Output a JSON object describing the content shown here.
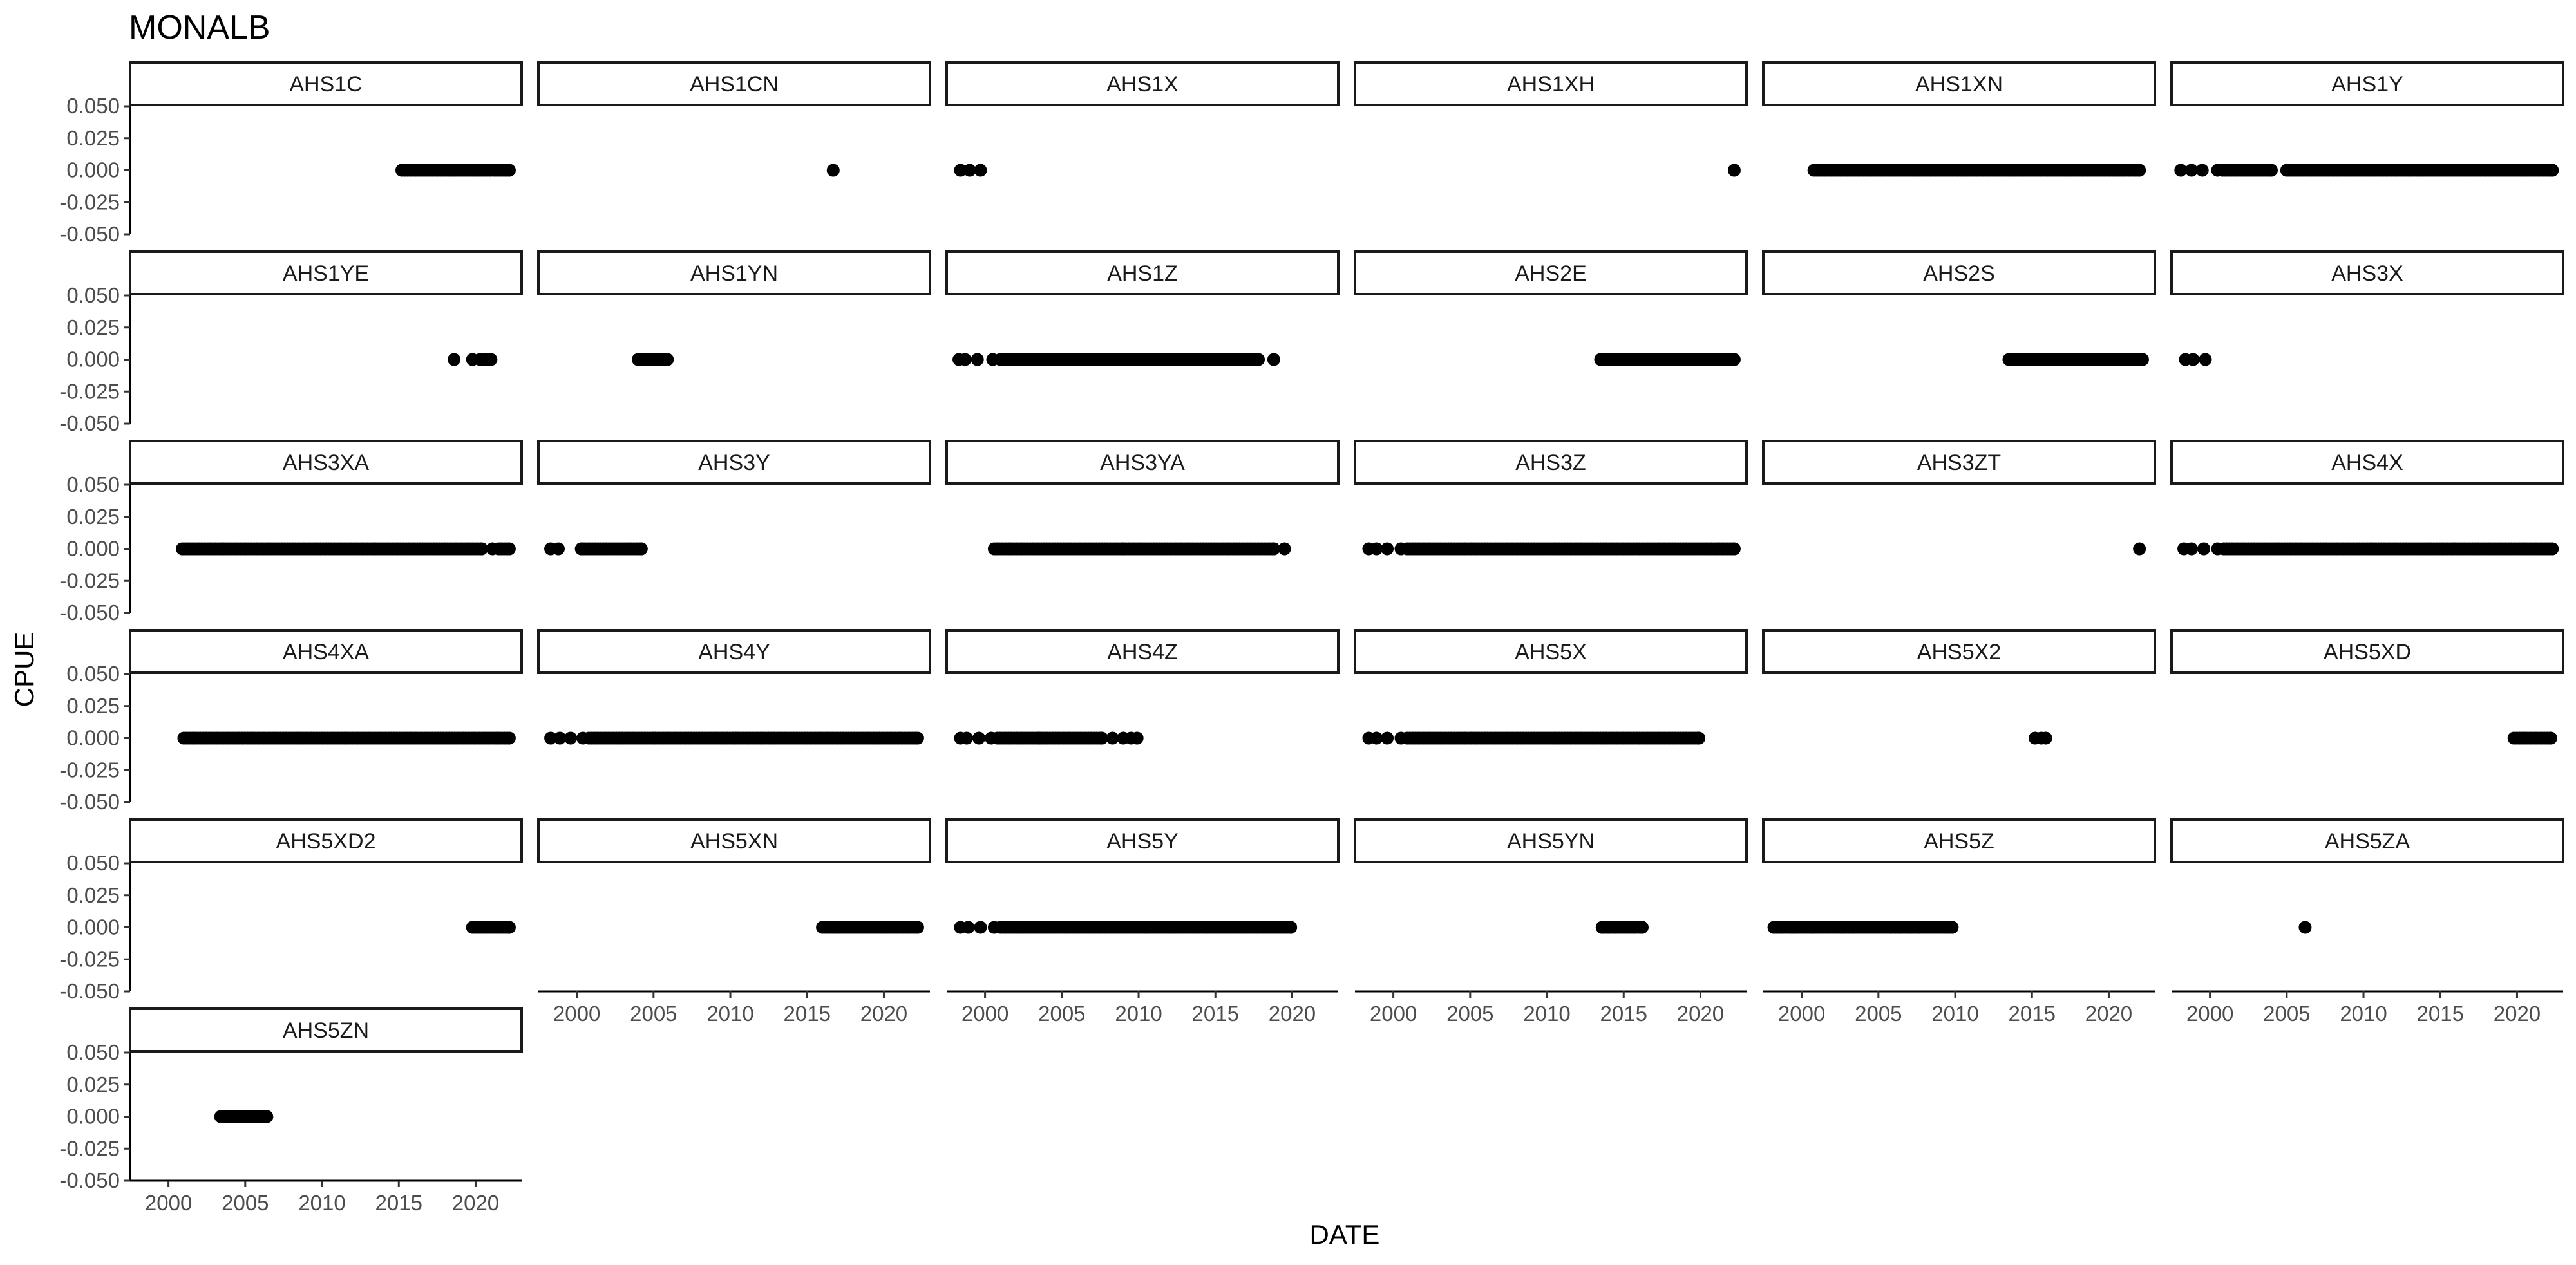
{
  "chart_data": {
    "type": "scatter",
    "title": "MONALB",
    "xlabel": "DATE",
    "ylabel": "CPUE",
    "xlim": [
      1997.5,
      2023
    ],
    "ylim": [
      -0.05,
      0.05
    ],
    "x_ticks": [
      2000,
      2005,
      2010,
      2015,
      2020
    ],
    "y_ticks": [
      "0.050",
      "0.025",
      "0.000",
      "-0.025",
      "-0.050"
    ],
    "y_tick_values": [
      0.05,
      0.025,
      0,
      -0.025,
      -0.05
    ],
    "grid": false,
    "layout": {
      "columns": 6,
      "facet_by": "station"
    },
    "panels": [
      {
        "name": "AHS1C",
        "segments": [
          [
            15.2,
            22.2
          ]
        ]
      },
      {
        "name": "AHS1CN",
        "points": [
          16.7
        ]
      },
      {
        "name": "AHS1X",
        "points": [
          -1.6,
          -1.0,
          -0.3
        ]
      },
      {
        "name": "AHS1XH",
        "points": [
          22.2
        ]
      },
      {
        "name": "AHS1XN",
        "segments": [
          [
            0.8,
            22.0
          ]
        ]
      },
      {
        "name": "AHS1Y",
        "points": [
          -1.9,
          -1.2,
          -0.5,
          0.5
        ],
        "segments": [
          [
            0.8,
            4.0
          ],
          [
            5.0,
            22.3
          ]
        ]
      },
      {
        "name": "AHS1YE",
        "points": [
          18.6,
          19.8,
          20.3,
          20.6,
          20.9,
          21.0
        ]
      },
      {
        "name": "AHS1YN",
        "segments": [
          [
            4.0,
            5.9
          ]
        ]
      },
      {
        "name": "AHS1Z",
        "points": [
          -1.7,
          -1.3,
          -0.5,
          0.5,
          18.8
        ],
        "segments": [
          [
            1.0,
            17.8
          ]
        ]
      },
      {
        "name": "AHS2E",
        "segments": [
          [
            13.5,
            22.2
          ]
        ]
      },
      {
        "name": "AHS2S",
        "segments": [
          [
            13.5,
            22.2
          ]
        ]
      },
      {
        "name": "AHS3X",
        "points": [
          -1.6,
          -1.1,
          -0.3
        ]
      },
      {
        "name": "AHS3XA",
        "points": [
          21.1
        ],
        "segments": [
          [
            0.9,
            20.4
          ],
          [
            21.5,
            22.2
          ]
        ]
      },
      {
        "name": "AHS3Y",
        "points": [
          -1.7,
          -1.2,
          0.3,
          4.2
        ],
        "segments": [
          [
            0.3,
            4.2
          ]
        ]
      },
      {
        "name": "AHS3YA",
        "points": [
          18.8,
          19.5
        ],
        "segments": [
          [
            0.6,
            9.0
          ],
          [
            9.0,
            18.8
          ]
        ]
      },
      {
        "name": "AHS3Z",
        "points": [
          -1.6,
          -1.1,
          -0.4,
          0.5
        ],
        "segments": [
          [
            0.9,
            22.2
          ]
        ]
      },
      {
        "name": "AHS3ZT",
        "points": [
          22.0
        ]
      },
      {
        "name": "AHS4X",
        "points": [
          -1.7,
          -1.2,
          -0.4,
          0.5
        ],
        "segments": [
          [
            0.9,
            22.3
          ]
        ]
      },
      {
        "name": "AHS4XA",
        "segments": [
          [
            1.0,
            22.2
          ]
        ]
      },
      {
        "name": "AHS4Y",
        "points": [
          -1.7,
          -1.1,
          -0.4,
          0.4
        ],
        "segments": [
          [
            0.8,
            22.2
          ]
        ]
      },
      {
        "name": "AHS4Z",
        "points": [
          -1.6,
          -1.2,
          -0.4,
          0.4,
          7.6,
          8.3,
          9.0,
          9.5,
          9.9
        ],
        "segments": [
          [
            0.8,
            3.5
          ],
          [
            3.5,
            7.6
          ]
        ]
      },
      {
        "name": "AHS5X",
        "points": [
          -1.6,
          -1.1,
          -0.4,
          0.5
        ],
        "segments": [
          [
            0.9,
            19.9
          ]
        ]
      },
      {
        "name": "AHS5X2",
        "points": [
          15.2,
          15.6,
          15.9
        ]
      },
      {
        "name": "AHS5XD",
        "segments": [
          [
            19.8,
            22.2
          ]
        ]
      },
      {
        "name": "AHS5XD2",
        "segments": [
          [
            19.8,
            22.2
          ]
        ]
      },
      {
        "name": "AHS5XN",
        "segments": [
          [
            16.0,
            22.2
          ]
        ]
      },
      {
        "name": "AHS5Y",
        "points": [
          -1.6,
          -1.1,
          -0.3,
          0.6
        ],
        "segments": [
          [
            1.0,
            19.9
          ]
        ]
      },
      {
        "name": "AHS5YN",
        "points": [
          13.6,
          14.0,
          14.4,
          16.2
        ],
        "segments": [
          [
            13.6,
            16.2
          ]
        ]
      },
      {
        "name": "AHS5Z",
        "points": [
          -1.8,
          -1.3,
          -0.6,
          0.7,
          2.7,
          3.3,
          5.8,
          6.4,
          7.1,
          7.6,
          9.8
        ],
        "segments": [
          [
            -1.8,
            9.8
          ]
        ]
      },
      {
        "name": "AHS5ZA",
        "points": [
          6.2
        ]
      },
      {
        "name": "AHS5ZN",
        "points": [
          6.4
        ],
        "segments": [
          [
            3.4,
            5.5
          ],
          [
            5.5,
            6.4
          ]
        ]
      }
    ]
  }
}
